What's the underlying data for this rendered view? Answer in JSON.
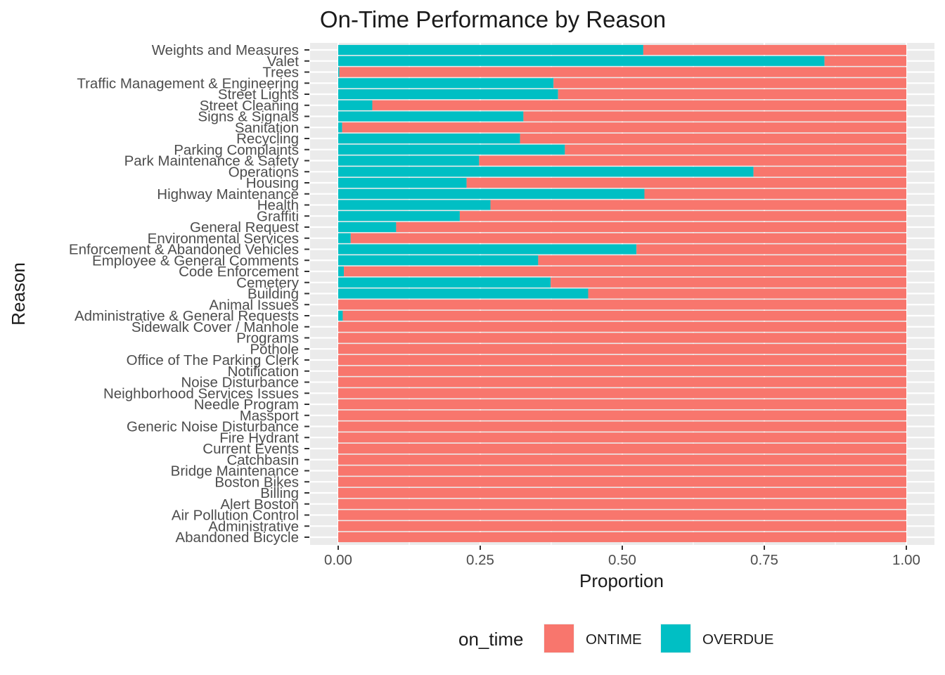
{
  "chart_data": {
    "type": "bar",
    "orientation": "horizontal",
    "stacked": "fill",
    "title": "On-Time Performance by Reason",
    "xlabel": "Proportion",
    "ylabel": "Reason",
    "xlim": [
      0,
      1
    ],
    "xticks": [
      "0.00",
      "0.25",
      "0.50",
      "0.75",
      "1.00"
    ],
    "grid": true,
    "legend": {
      "title": "on_time",
      "position": "bottom",
      "entries": [
        {
          "name": "ONTIME",
          "color": "#F8766D"
        },
        {
          "name": "OVERDUE",
          "color": "#00BFC4"
        }
      ]
    },
    "categories": [
      "Weights and Measures",
      "Valet",
      "Trees",
      "Traffic Management & Engineering",
      "Street Lights",
      "Street Cleaning",
      "Signs & Signals",
      "Sanitation",
      "Recycling",
      "Parking Complaints",
      "Park Maintenance & Safety",
      "Operations",
      "Housing",
      "Highway Maintenance",
      "Health",
      "Graffiti",
      "General Request",
      "Environmental Services",
      "Enforcement & Abandoned Vehicles",
      "Employee & General Comments",
      "Code Enforcement",
      "Cemetery",
      "Building",
      "Animal Issues",
      "Administrative & General Requests",
      "Sidewalk Cover / Manhole",
      "Programs",
      "Pothole",
      "Office of The Parking Clerk",
      "Notification",
      "Noise Disturbance",
      "Neighborhood Services Issues",
      "Needle Program",
      "Massport",
      "Generic Noise Disturbance",
      "Fire Hydrant",
      "Current Events",
      "Catchbasin",
      "Bridge Maintenance",
      "Boston Bikes",
      "Billing",
      "Alert Boston",
      "Air Pollution Control",
      "Administrative",
      "Abandoned Bicycle"
    ],
    "series": [
      {
        "name": "OVERDUE",
        "color": "#00BFC4",
        "values": [
          0.537,
          0.856,
          0.002,
          0.379,
          0.387,
          0.06,
          0.326,
          0.007,
          0.32,
          0.399,
          0.248,
          0.731,
          0.226,
          0.539,
          0.268,
          0.214,
          0.102,
          0.022,
          0.525,
          0.352,
          0.01,
          0.374,
          0.44,
          0.0,
          0.008,
          0.0,
          0.0,
          0.0,
          0.0,
          0.0,
          0.0,
          0.0,
          0.0,
          0.0,
          0.0,
          0.0,
          0.0,
          0.0,
          0.0,
          0.0,
          0.0,
          0.0,
          0.0,
          0.0,
          0.0
        ]
      },
      {
        "name": "ONTIME",
        "color": "#F8766D",
        "values": [
          0.463,
          0.144,
          0.998,
          0.621,
          0.613,
          0.94,
          0.674,
          0.993,
          0.68,
          0.601,
          0.752,
          0.269,
          0.774,
          0.461,
          0.732,
          0.786,
          0.898,
          0.978,
          0.475,
          0.648,
          0.99,
          0.626,
          0.56,
          1.0,
          0.992,
          1.0,
          1.0,
          1.0,
          1.0,
          1.0,
          1.0,
          1.0,
          1.0,
          1.0,
          1.0,
          1.0,
          1.0,
          1.0,
          1.0,
          1.0,
          1.0,
          1.0,
          1.0,
          1.0,
          1.0
        ]
      }
    ]
  }
}
